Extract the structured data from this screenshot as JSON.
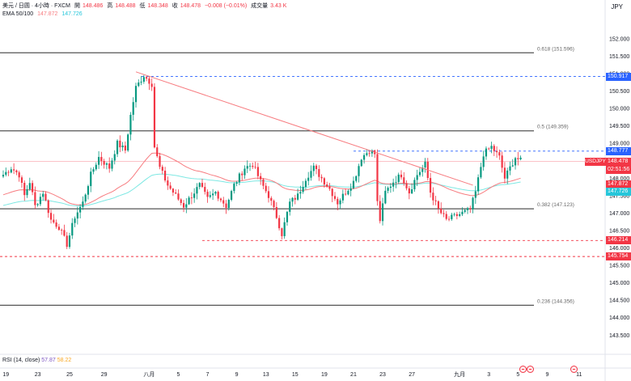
{
  "header": {
    "symbol": "美元 / 日圆 · 4小時 · FXCM",
    "open_label": "開",
    "open_value": "148.486",
    "high_label": "高",
    "high_value": "148.488",
    "low_label": "低",
    "low_value": "148.348",
    "close_label": "收",
    "close_value": "148.478",
    "change_value": "−0.008 (−0.01%)",
    "volume_label": "成交量",
    "volume_value": "3.43 K",
    "ema_label": "EMA 50/100",
    "ema50_value": "147.872",
    "ema100_value": "147.726",
    "currency": "JPY"
  },
  "rsi": {
    "label": "RSI (14, close)",
    "value1": "57.87",
    "value2": "58.22"
  },
  "colors": {
    "up": "#089981",
    "down": "#f23645",
    "ema50": "#f77c80",
    "ema100": "#7ee8e3",
    "trendline": "#f77c80",
    "blue_dash": "#2962ff",
    "red_dash": "#f23645",
    "fib_line": "#555555",
    "price_tag_blue": "#2962ff",
    "price_tag_red": "#f23645",
    "ema100_tag": "#26c6da"
  },
  "chart_data": {
    "type": "candlestick",
    "y_axis": {
      "range": [
        142.95,
        152.6
      ],
      "ticks": [
        "152.000",
        "151.500",
        "151.000",
        "150.500",
        "150.000",
        "149.500",
        "149.000",
        "148.500",
        "148.000",
        "147.500",
        "147.000",
        "146.500",
        "146.000",
        "145.500",
        "145.000",
        "144.500",
        "144.000",
        "143.500"
      ]
    },
    "x_axis": {
      "ticks": [
        {
          "label": "19",
          "candle": 1
        },
        {
          "label": "23",
          "candle": 13
        },
        {
          "label": "25",
          "candle": 25
        },
        {
          "label": "29",
          "candle": 38
        },
        {
          "label": "八月",
          "candle": 55
        },
        {
          "label": "5",
          "candle": 66
        },
        {
          "label": "7",
          "candle": 77
        },
        {
          "label": "9",
          "candle": 88
        },
        {
          "label": "13",
          "candle": 99
        },
        {
          "label": "15",
          "candle": 110
        },
        {
          "label": "19",
          "candle": 121
        },
        {
          "label": "21",
          "candle": 132
        },
        {
          "label": "23",
          "candle": 143
        },
        {
          "label": "27",
          "candle": 154
        },
        {
          "label": "九月",
          "candle": 172
        },
        {
          "label": "3",
          "candle": 183
        },
        {
          "label": "5",
          "candle": 194
        },
        {
          "label": "9",
          "candle": 205
        },
        {
          "label": "11",
          "candle": 217
        }
      ]
    },
    "fib_levels": [
      {
        "label": "0.618 (151.596)",
        "value": 151.596
      },
      {
        "label": "0.5 (149.359)",
        "value": 149.359
      },
      {
        "label": "0.382 (147.123)",
        "value": 147.123
      },
      {
        "label": "0.236 (144.356)",
        "value": 144.356
      }
    ],
    "horizontal_levels": [
      {
        "value": 150.917,
        "label": "150.917",
        "style": "blue-dash",
        "tag": "blue"
      },
      {
        "value": 148.777,
        "label": "148.777",
        "style": "blue-dash",
        "tag": "blue"
      },
      {
        "value": 146.214,
        "label": "146.214",
        "style": "red-dash",
        "tag": "red"
      },
      {
        "value": 145.754,
        "label": "145.754",
        "style": "red-dash",
        "tag": "red"
      }
    ],
    "price_tags": [
      {
        "symbol": "USDJPY",
        "price": "148.478",
        "countdown": "02:51:56",
        "value": 148.478
      },
      {
        "label": "147.872",
        "value": 147.872,
        "color": "red"
      },
      {
        "label": "147.726",
        "value": 147.726,
        "color": "cyan"
      }
    ],
    "trendline": {
      "from": {
        "candle": 50,
        "value": 151.05
      },
      "to": {
        "candle": 177,
        "value": 147.8
      }
    },
    "close_anchors": [
      [
        0,
        148.1
      ],
      [
        3,
        148.3
      ],
      [
        6,
        148.1
      ],
      [
        8,
        147.5
      ],
      [
        10,
        147.9
      ],
      [
        12,
        147.2
      ],
      [
        15,
        147.6
      ],
      [
        18,
        146.8
      ],
      [
        21,
        146.6
      ],
      [
        24,
        146.1
      ],
      [
        27,
        146.9
      ],
      [
        30,
        147.3
      ],
      [
        33,
        148.1
      ],
      [
        36,
        148.6
      ],
      [
        40,
        148.3
      ],
      [
        43,
        149.0
      ],
      [
        46,
        148.8
      ],
      [
        48,
        149.8
      ],
      [
        50,
        150.6
      ],
      [
        53,
        150.95
      ],
      [
        56,
        150.7
      ],
      [
        57,
        148.9
      ],
      [
        59,
        148.3
      ],
      [
        62,
        147.8
      ],
      [
        65,
        147.5
      ],
      [
        68,
        147.2
      ],
      [
        71,
        147.5
      ],
      [
        74,
        147.8
      ],
      [
        77,
        147.4
      ],
      [
        80,
        147.6
      ],
      [
        84,
        147.2
      ],
      [
        87,
        147.8
      ],
      [
        91,
        148.3
      ],
      [
        94,
        148.4
      ],
      [
        97,
        147.9
      ],
      [
        100,
        147.5
      ],
      [
        103,
        146.9
      ],
      [
        105,
        146.4
      ],
      [
        108,
        147.3
      ],
      [
        111,
        147.5
      ],
      [
        114,
        148.0
      ],
      [
        117,
        148.3
      ],
      [
        120,
        148.0
      ],
      [
        123,
        147.7
      ],
      [
        126,
        147.3
      ],
      [
        129,
        147.6
      ],
      [
        132,
        147.9
      ],
      [
        135,
        148.6
      ],
      [
        138,
        148.8
      ],
      [
        140,
        148.7
      ],
      [
        141,
        147.3
      ],
      [
        142,
        146.8
      ],
      [
        144,
        147.6
      ],
      [
        147,
        147.9
      ],
      [
        150,
        148.1
      ],
      [
        153,
        147.6
      ],
      [
        156,
        148.1
      ],
      [
        159,
        148.4
      ],
      [
        161,
        147.6
      ],
      [
        164,
        147.1
      ],
      [
        167,
        146.8
      ],
      [
        170,
        146.9
      ],
      [
        173,
        147.0
      ],
      [
        176,
        147.1
      ],
      [
        178,
        147.6
      ],
      [
        181,
        148.7
      ],
      [
        184,
        148.9
      ],
      [
        187,
        148.6
      ],
      [
        189,
        148.0
      ],
      [
        191,
        148.3
      ],
      [
        193,
        148.6
      ],
      [
        195,
        148.5
      ]
    ]
  }
}
